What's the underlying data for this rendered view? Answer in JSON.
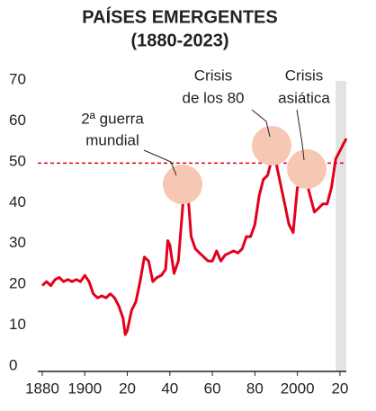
{
  "chart_data": {
    "type": "line",
    "title": "PAÍSES EMERGENTES",
    "subtitle": "(1880-2023)",
    "x": [
      1880,
      1882,
      1884,
      1886,
      1888,
      1890,
      1892,
      1894,
      1896,
      1898,
      1900,
      1902,
      1904,
      1906,
      1908,
      1910,
      1912,
      1914,
      1916,
      1918,
      1919,
      1920,
      1922,
      1924,
      1926,
      1928,
      1930,
      1932,
      1934,
      1936,
      1938,
      1939,
      1940,
      1942,
      1944,
      1946,
      1947,
      1948,
      1949,
      1950,
      1952,
      1954,
      1956,
      1958,
      1960,
      1962,
      1964,
      1966,
      1968,
      1970,
      1972,
      1974,
      1976,
      1978,
      1980,
      1982,
      1984,
      1986,
      1988,
      1989,
      1990,
      1992,
      1994,
      1996,
      1998,
      2000,
      2002,
      2003,
      2004,
      2006,
      2008,
      2010,
      2012,
      2014,
      2016,
      2018,
      2020,
      2022,
      2023
    ],
    "series": [
      {
        "color": "#e3001b",
        "values": [
          21,
          22,
          21,
          22.5,
          23,
          22,
          22.5,
          22,
          22.5,
          22,
          23.5,
          22,
          19,
          18,
          18.5,
          18,
          19,
          18,
          16,
          13,
          9,
          10,
          15,
          17,
          22,
          28,
          27,
          22,
          23,
          23.5,
          25,
          32,
          31,
          24,
          27,
          40,
          46,
          46,
          40,
          33,
          30,
          29,
          28,
          27,
          27,
          29.5,
          27,
          28.5,
          29,
          29.5,
          29,
          30,
          33,
          33,
          36,
          43,
          47,
          48,
          52,
          56,
          51,
          46,
          41,
          36,
          34,
          45,
          46,
          49,
          47,
          43,
          39,
          40,
          41,
          41,
          45,
          52,
          54,
          56,
          57
        ]
      }
    ],
    "reference_line": 51,
    "reference_color": "#e3001b",
    "shaded_range": [
      2018,
      2023
    ],
    "annotations": [
      [
        "2ª guerra",
        "mundial"
      ],
      [
        "Crisis",
        "de los 80"
      ],
      [
        "Crisis",
        "asiática"
      ]
    ],
    "xlim": [
      1880,
      2023
    ],
    "ylim": [
      0,
      70
    ],
    "yticks": [
      0,
      10,
      20,
      30,
      40,
      50,
      60,
      70
    ],
    "xticks": [
      1880,
      1900,
      {
        "value": 1920,
        "label": "20"
      },
      {
        "value": 1940,
        "label": "40"
      },
      {
        "value": 1960,
        "label": "60"
      },
      {
        "value": 1980,
        "label": "80"
      },
      2000,
      {
        "value": 2020,
        "label": "20"
      }
    ]
  }
}
